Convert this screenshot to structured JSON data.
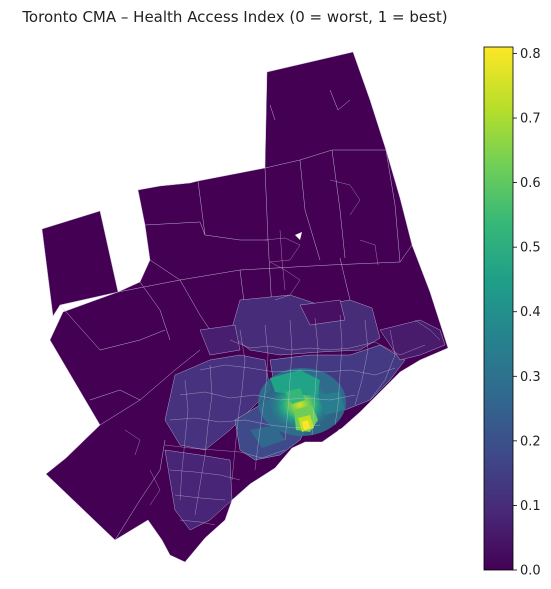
{
  "title": "Toronto CMA – Health Access Index (0 = worst, 1 = best)",
  "colors": {
    "base": "#440154",
    "border": "#c8c0d8",
    "viridis": [
      "#440154",
      "#482878",
      "#3e4989",
      "#31688e",
      "#26828e",
      "#1f9e89",
      "#35b779",
      "#6ece58",
      "#b5de2b",
      "#fde725"
    ]
  },
  "colorbar": {
    "min": 0.0,
    "max": 0.81,
    "ticks": [
      {
        "value": 0.0,
        "label": "0.0"
      },
      {
        "value": 0.1,
        "label": "0.1"
      },
      {
        "value": 0.2,
        "label": "0.2"
      },
      {
        "value": 0.3,
        "label": "0.3"
      },
      {
        "value": 0.4,
        "label": "0.4"
      },
      {
        "value": 0.5,
        "label": "0.5"
      },
      {
        "value": 0.6,
        "label": "0.6"
      },
      {
        "value": 0.7,
        "label": "0.7"
      },
      {
        "value": 0.8,
        "label": "0.8"
      }
    ]
  }
}
